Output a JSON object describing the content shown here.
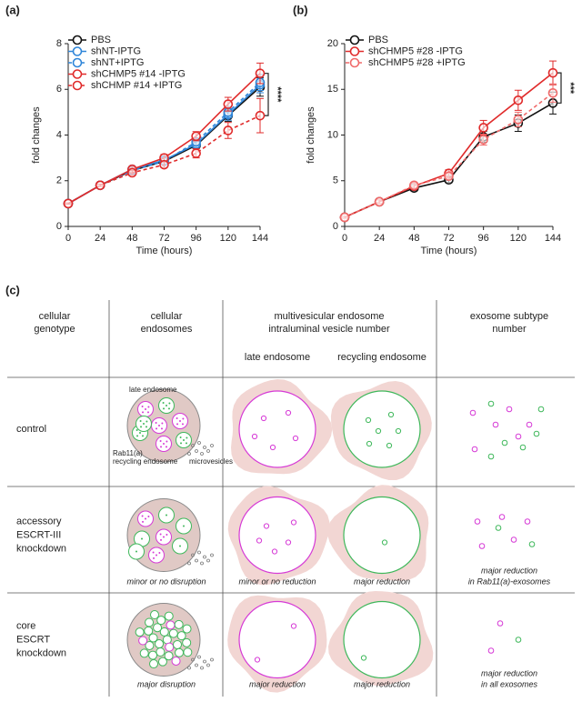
{
  "chart_data": [
    {
      "type": "line",
      "panel_label": "(a)",
      "x_label": "Time (hours)",
      "y_label": "fold changes",
      "x": [
        0,
        24,
        48,
        72,
        96,
        120,
        144
      ],
      "xlim": [
        0,
        144
      ],
      "xticks": [
        0,
        24,
        48,
        72,
        96,
        120,
        144
      ],
      "ylim": [
        0,
        8
      ],
      "yticks": [
        0,
        2,
        4,
        6,
        8
      ],
      "annotation": "****",
      "series": [
        {
          "name": "PBS",
          "color": "#111111",
          "dash": false,
          "values": [
            1,
            1.8,
            2.45,
            2.85,
            3.55,
            4.85,
            6.1
          ],
          "errors": [
            0.03,
            0.05,
            0.08,
            0.1,
            0.15,
            0.25,
            0.4
          ]
        },
        {
          "name": "shNT-IPTG",
          "color": "#2f86d9",
          "dash": false,
          "values": [
            1,
            1.8,
            2.5,
            2.9,
            3.6,
            4.9,
            6.2
          ],
          "errors": [
            0.03,
            0.05,
            0.08,
            0.1,
            0.15,
            0.25,
            0.35
          ]
        },
        {
          "name": "shNT+IPTG",
          "color": "#2f86d9",
          "dash": true,
          "values": [
            1,
            1.8,
            2.45,
            2.85,
            3.7,
            5.0,
            6.3
          ],
          "errors": [
            0.03,
            0.05,
            0.08,
            0.1,
            0.15,
            0.25,
            0.35
          ]
        },
        {
          "name": "shCHMP5 #14 -IPTG",
          "color": "#e02b2b",
          "dash": false,
          "values": [
            1,
            1.8,
            2.5,
            3.0,
            3.95,
            5.35,
            6.7
          ],
          "errors": [
            0.03,
            0.05,
            0.1,
            0.15,
            0.2,
            0.3,
            0.45
          ]
        },
        {
          "name": "shCHMP #14 +IPTG",
          "color": "#e02b2b",
          "dash": true,
          "values": [
            1,
            1.8,
            2.35,
            2.7,
            3.2,
            4.2,
            4.85
          ],
          "errors": [
            0.03,
            0.05,
            0.1,
            0.12,
            0.2,
            0.35,
            0.75
          ]
        }
      ]
    },
    {
      "type": "line",
      "panel_label": "(b)",
      "x_label": "Time (hours)",
      "y_label": "fold changes",
      "x": [
        0,
        24,
        48,
        72,
        96,
        120,
        144
      ],
      "xlim": [
        0,
        144
      ],
      "xticks": [
        0,
        24,
        48,
        72,
        96,
        120,
        144
      ],
      "ylim": [
        0,
        20
      ],
      "yticks": [
        0,
        5,
        10,
        15,
        20
      ],
      "annotation": "***",
      "series": [
        {
          "name": "PBS",
          "color": "#111111",
          "dash": false,
          "values": [
            1,
            2.7,
            4.2,
            5.1,
            9.8,
            11.3,
            13.5
          ],
          "errors": [
            0.1,
            0.2,
            0.3,
            0.3,
            0.6,
            0.9,
            1.2
          ]
        },
        {
          "name": "shCHMP5 #28 -IPTG",
          "color": "#e02b2b",
          "dash": false,
          "values": [
            1,
            2.7,
            4.4,
            5.8,
            10.8,
            13.8,
            16.8
          ],
          "errors": [
            0.1,
            0.2,
            0.3,
            0.4,
            0.8,
            1.1,
            1.3
          ]
        },
        {
          "name": "shCHMP5 #28 +IPTG",
          "color": "#f06a6a",
          "dash": true,
          "values": [
            1,
            2.7,
            4.5,
            5.5,
            9.5,
            11.7,
            14.6
          ],
          "errors": [
            0.1,
            0.2,
            0.3,
            0.3,
            0.6,
            0.8,
            1.0
          ]
        }
      ]
    }
  ],
  "panel_c": {
    "label": "(c)",
    "headers": [
      [
        "cellular",
        "genotype"
      ],
      [
        "cellular",
        "endosomes"
      ],
      [
        "multivesicular endosome",
        "intraluminal vesicle number"
      ],
      [
        "exosome subtype",
        "number"
      ]
    ],
    "subheaders": [
      "late endosome",
      "recycling endosome"
    ],
    "endosome_labels": [
      "late endosome",
      "Rab11(a)",
      "recycling endosome",
      "microvesicles"
    ],
    "rows": [
      {
        "genotype": [
          "control"
        ]
      },
      {
        "genotype": [
          "accessory",
          "ESCRT-III",
          "knockdown"
        ],
        "endosomes": [
          "minor or no disruption"
        ],
        "late": [
          "minor or no reduction"
        ],
        "recycling": [
          "major reduction"
        ],
        "exosome": [
          "major reduction",
          "in Rab11(a)-exosomes"
        ]
      },
      {
        "genotype": [
          "core",
          "ESCRT",
          "knockdown"
        ],
        "endosomes": [
          "major disruption"
        ],
        "late": [
          "major reduction"
        ],
        "recycling": [
          "major reduction"
        ],
        "exosome": [
          "major reduction",
          "in all exosomes"
        ]
      }
    ]
  }
}
